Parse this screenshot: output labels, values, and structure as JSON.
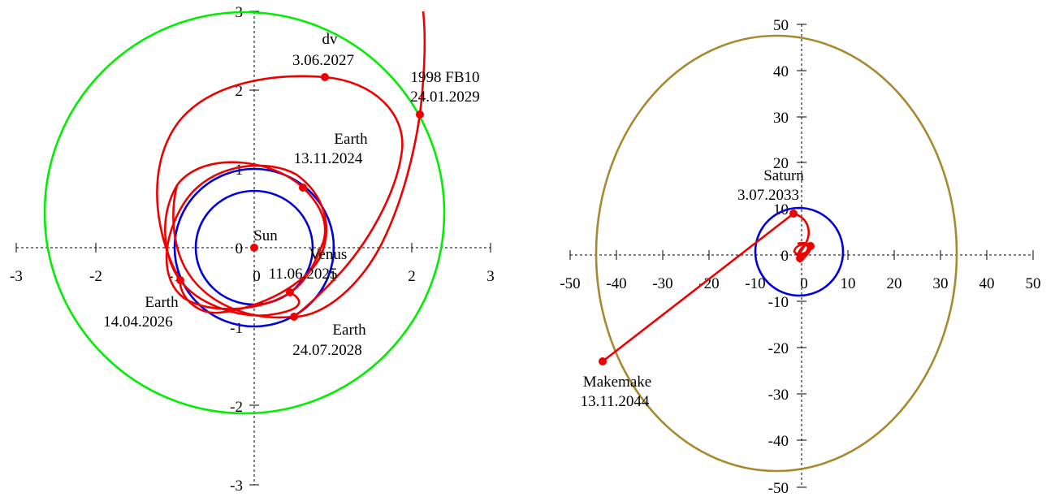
{
  "colors": {
    "trajectory": "#ee0000",
    "inner_orbits": "#0000dd",
    "asteroid_orbit": "#00ee00",
    "makemake_orbit": "#a88930"
  },
  "left_panel": {
    "x_ticks": [
      "-3",
      "-2",
      "-1",
      "0",
      "1",
      "2",
      "3"
    ],
    "y_ticks": [
      "-3",
      "-2",
      "-1",
      "0",
      "1",
      "2",
      "3"
    ],
    "labels": {
      "sun": "Sun",
      "dv": "dv",
      "dv_date": "3.06.2027",
      "fb10": "1998 FB10",
      "fb10_date": "24.01.2029",
      "earth1": "Earth",
      "earth1_date": "13.11.2024",
      "venus": "Venus",
      "venus_date": "11.06.2025",
      "earth2": "Earth",
      "earth2_date": "14.04.2026",
      "earth3": "Earth",
      "earth3_date": "24.07.2028"
    }
  },
  "right_panel": {
    "x_ticks": [
      "-50",
      "-40",
      "-30",
      "-20",
      "-10",
      "0",
      "10",
      "20",
      "30",
      "40",
      "50"
    ],
    "y_ticks": [
      "-50",
      "-40",
      "-30",
      "-20",
      "-10",
      "0",
      "10",
      "20",
      "30",
      "40",
      "50"
    ],
    "labels": {
      "saturn": "Saturn",
      "saturn_date": "3.07.2033",
      "makemake": "Makemake",
      "makemake_date": "13.11.2044"
    }
  }
}
